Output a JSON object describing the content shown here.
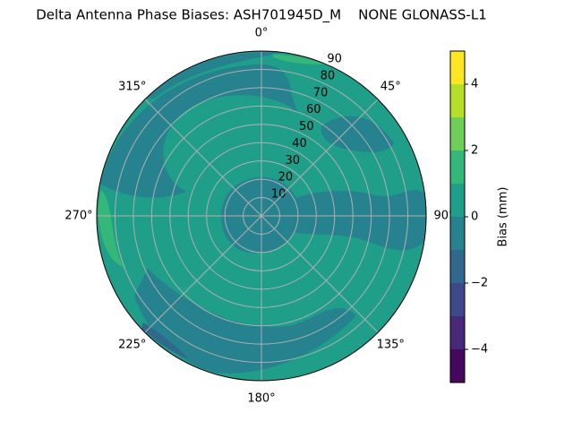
{
  "chart_data": {
    "type": "polar-contour",
    "title": "Delta Antenna Phase Biases: ASH701945D_M    NONE GLONASS-L1",
    "colorbar_label": "Bias (mm)",
    "rlim": [
      0,
      90
    ],
    "rticks": [
      10,
      20,
      30,
      40,
      50,
      60,
      70,
      80,
      90
    ],
    "thetaticks": [
      {
        "value": 0,
        "label": "0°"
      },
      {
        "value": 45,
        "label": "45°"
      },
      {
        "value": 90,
        "label": "90°"
      },
      {
        "value": 135,
        "label": "135°"
      },
      {
        "value": 180,
        "label": "180°"
      },
      {
        "value": 225,
        "label": "225°"
      },
      {
        "value": 270,
        "label": "270°"
      },
      {
        "value": 315,
        "label": "315°"
      }
    ],
    "theta_direction": "clockwise",
    "theta_zero": "top",
    "grid": true,
    "levels": [
      -5,
      -4,
      -3,
      -2,
      -1,
      0,
      1,
      2,
      3,
      4,
      5
    ],
    "level_colors": [
      "#46085c",
      "#482878",
      "#3e4989",
      "#31688e",
      "#26828e",
      "#1f9e89",
      "#35b779",
      "#6ece58",
      "#b5de2b",
      "#fde725"
    ],
    "clim": [
      -5,
      5
    ],
    "cticks": [
      {
        "value": -4,
        "label": "−4"
      },
      {
        "value": -2,
        "label": "−2"
      },
      0,
      2,
      4
    ]
  }
}
